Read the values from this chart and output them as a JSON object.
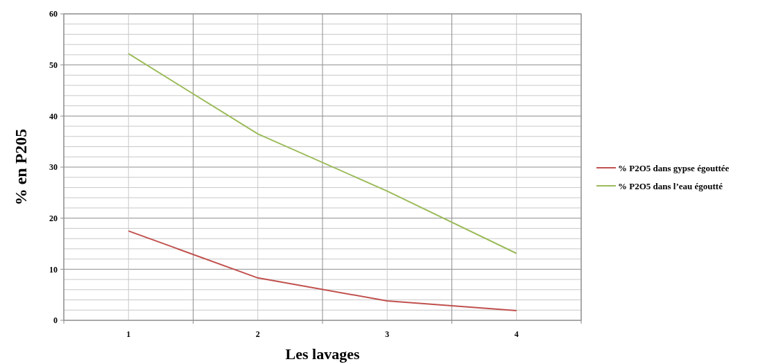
{
  "chart_data": {
    "type": "line",
    "xlabel": "Les lavages",
    "ylabel": "% en P205",
    "categories": [
      "1",
      "2",
      "3",
      "4"
    ],
    "series": [
      {
        "name": "% P2O5 dans gypse égouttée",
        "color": "#c0504d",
        "values": [
          17.5,
          8.3,
          3.8,
          1.9
        ]
      },
      {
        "name": "% P2O5 dans l’eau égoutté",
        "color": "#9bbb59",
        "values": [
          52.2,
          36.5,
          25.3,
          13.1
        ]
      }
    ],
    "ylim": [
      0,
      60
    ],
    "yticks": [
      0,
      {
        "value": 2,
        "label": null
      },
      {
        "value": 4,
        "label": null
      },
      {
        "value": 6,
        "label": null
      },
      {
        "value": 8,
        "label": null
      },
      10,
      {
        "value": 12,
        "label": null
      },
      {
        "value": 14,
        "label": null
      },
      {
        "value": 16,
        "label": null
      },
      {
        "value": 18,
        "label": null
      },
      20,
      {
        "value": 22,
        "label": null
      },
      {
        "value": 24,
        "label": null
      },
      {
        "value": 26,
        "label": null
      },
      {
        "value": 28,
        "label": null
      },
      30,
      {
        "value": 32,
        "label": null
      },
      {
        "value": 34,
        "label": null
      },
      {
        "value": 36,
        "label": null
      },
      {
        "value": 38,
        "label": null
      },
      40,
      {
        "value": 42,
        "label": null
      },
      {
        "value": 44,
        "label": null
      },
      {
        "value": 46,
        "label": null
      },
      {
        "value": 48,
        "label": null
      },
      50,
      {
        "value": 52,
        "label": null
      },
      {
        "value": 54,
        "label": null
      },
      {
        "value": 56,
        "label": null
      },
      {
        "value": 58,
        "label": null
      },
      60
    ],
    "grid": true,
    "legend": "right",
    "marker": "none",
    "line_style": "solid"
  }
}
